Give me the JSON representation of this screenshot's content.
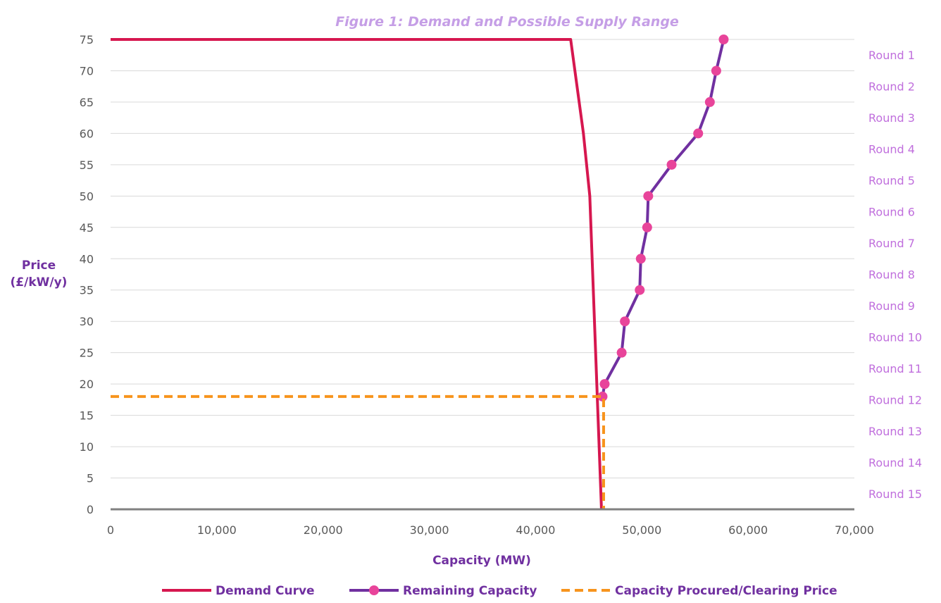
{
  "chart_data": {
    "type": "line",
    "title": "Figure 1: Demand and Possible Supply Range",
    "xlabel": "Capacity (MW)",
    "ylabel_lines": [
      "Price",
      "(£/kW/y)"
    ],
    "xlim": [
      0,
      70000
    ],
    "ylim": [
      0,
      75
    ],
    "x_ticks": [
      0,
      10000,
      20000,
      30000,
      40000,
      50000,
      60000,
      70000
    ],
    "x_tick_labels": [
      "0",
      "10,000",
      "20,000",
      "30,000",
      "40,000",
      "50,000",
      "60,000",
      "70,000"
    ],
    "y_ticks": [
      0,
      5,
      10,
      15,
      20,
      25,
      30,
      35,
      40,
      45,
      50,
      55,
      60,
      65,
      70,
      75
    ],
    "y_tick_labels": [
      "0",
      "5",
      "10",
      "15",
      "20",
      "25",
      "30",
      "35",
      "40",
      "45",
      "50",
      "55",
      "60",
      "65",
      "70",
      "75"
    ],
    "grid": "horizontal",
    "legend_position": "bottom",
    "round_labels": [
      "Round 1",
      "Round 2",
      "Round 3",
      "Round 4",
      "Round 5",
      "Round 6",
      "Round 7",
      "Round 8",
      "Round 9",
      "Round 10",
      "Round 11",
      "Round 12",
      "Round 13",
      "Round 14",
      "Round 15"
    ],
    "series": [
      {
        "name": "Demand Curve",
        "style": "solid",
        "color": "#d6174f",
        "points": [
          [
            0,
            75
          ],
          [
            43300,
            75
          ],
          [
            44500,
            60
          ],
          [
            45100,
            50
          ],
          [
            46200,
            0
          ]
        ]
      },
      {
        "name": "Remaining Capacity",
        "style": "solid-markers",
        "color": "#7030a0",
        "marker_color": "#e8449a",
        "points": [
          [
            57700,
            75
          ],
          [
            57000,
            70
          ],
          [
            56400,
            65
          ],
          [
            55300,
            60
          ],
          [
            52800,
            55
          ],
          [
            50600,
            50
          ],
          [
            50500,
            45
          ],
          [
            49900,
            40
          ],
          [
            49800,
            35
          ],
          [
            48400,
            30
          ],
          [
            48100,
            25
          ],
          [
            46500,
            20
          ],
          [
            46300,
            18
          ]
        ]
      },
      {
        "name": "Capacity Procured/Clearing Price",
        "style": "dashed",
        "color": "#f7941d",
        "points": [
          [
            0,
            18
          ],
          [
            46400,
            18
          ],
          [
            46400,
            0
          ]
        ]
      }
    ]
  }
}
